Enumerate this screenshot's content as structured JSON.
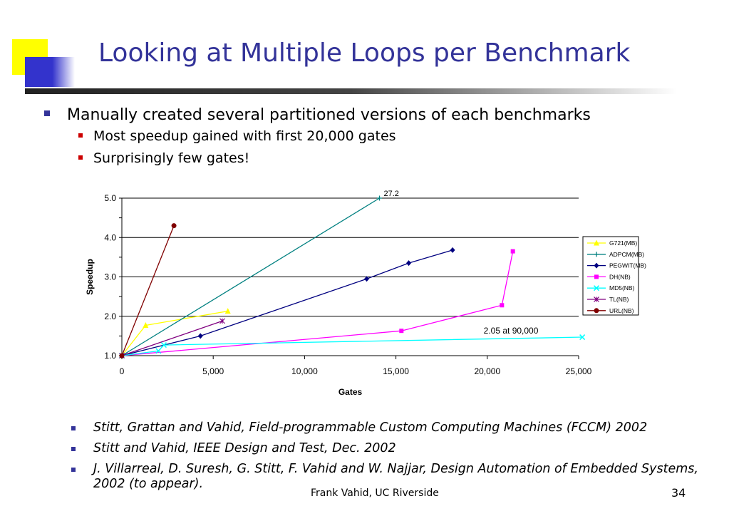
{
  "slide": {
    "title": "Looking at Multiple Loops per Benchmark",
    "bullets": [
      {
        "text": "Manually created several partitioned versions of each benchmarks",
        "sub": [
          "Most speedup gained with first 20,000 gates",
          "Surprisingly few gates!"
        ]
      }
    ],
    "references": [
      "Stitt, Grattan and Vahid, Field-programmable Custom Computing Machines (FCCM) 2002",
      "Stitt and Vahid, IEEE Design and Test, Dec. 2002",
      "J. Villarreal, D. Suresh, G. Stitt, F. Vahid and W. Najjar, Design Automation of Embedded Systems, 2002 (to appear)."
    ],
    "footer": "Frank Vahid, UC Riverside",
    "page_number": "34",
    "colors": {
      "title": "#333399",
      "bullet_primary": "#333399",
      "bullet_secondary": "#cc0000",
      "accent_yellow": "#ffff00",
      "accent_blue": "#3333cc"
    }
  },
  "chart_data": {
    "type": "line",
    "xlabel": "Gates",
    "ylabel": "Speedup",
    "xlim": [
      0,
      25000
    ],
    "ylim": [
      1.0,
      5.0
    ],
    "x_ticks": [
      "0",
      "5,000",
      "10,000",
      "15,000",
      "20,000",
      "25,000"
    ],
    "y_ticks": [
      "1.0",
      "2.0",
      "3.0",
      "4.0",
      "5.0"
    ],
    "grid": "horizontal major lines",
    "legend_position": "right",
    "annotations": [
      "27.2",
      "2.05 at 90,000"
    ],
    "series": [
      {
        "name": "G721(MB)",
        "color": "#ffff00",
        "marker": "triangle",
        "points": [
          [
            0,
            1.0
          ],
          [
            1300,
            1.77
          ],
          [
            5800,
            2.13
          ]
        ]
      },
      {
        "name": "ADPCM(MB)",
        "color": "#008080",
        "marker": "plus",
        "points": [
          [
            0,
            1.0
          ],
          [
            14100,
            5.0
          ]
        ]
      },
      {
        "name": "PEGWIT(MB)",
        "color": "#000080",
        "marker": "diamond",
        "points": [
          [
            0,
            1.0
          ],
          [
            4300,
            1.5
          ],
          [
            13400,
            2.95
          ],
          [
            15700,
            3.35
          ],
          [
            18100,
            3.68
          ]
        ]
      },
      {
        "name": "DH(NB)",
        "color": "#ff00ff",
        "marker": "square",
        "points": [
          [
            0,
            1.0
          ],
          [
            15300,
            1.63
          ],
          [
            20800,
            2.28
          ],
          [
            21400,
            3.65
          ]
        ]
      },
      {
        "name": "MD5(NB)",
        "color": "#00ffff",
        "marker": "x",
        "points": [
          [
            0,
            1.0
          ],
          [
            2000,
            1.12
          ],
          [
            2300,
            1.27
          ],
          [
            25200,
            1.47
          ]
        ]
      },
      {
        "name": "TL(NB)",
        "color": "#800080",
        "marker": "star",
        "points": [
          [
            0,
            1.0
          ],
          [
            5500,
            1.88
          ]
        ]
      },
      {
        "name": "URL(NB)",
        "color": "#800000",
        "marker": "circle",
        "points": [
          [
            0,
            1.0
          ],
          [
            2850,
            4.3
          ]
        ]
      }
    ]
  }
}
